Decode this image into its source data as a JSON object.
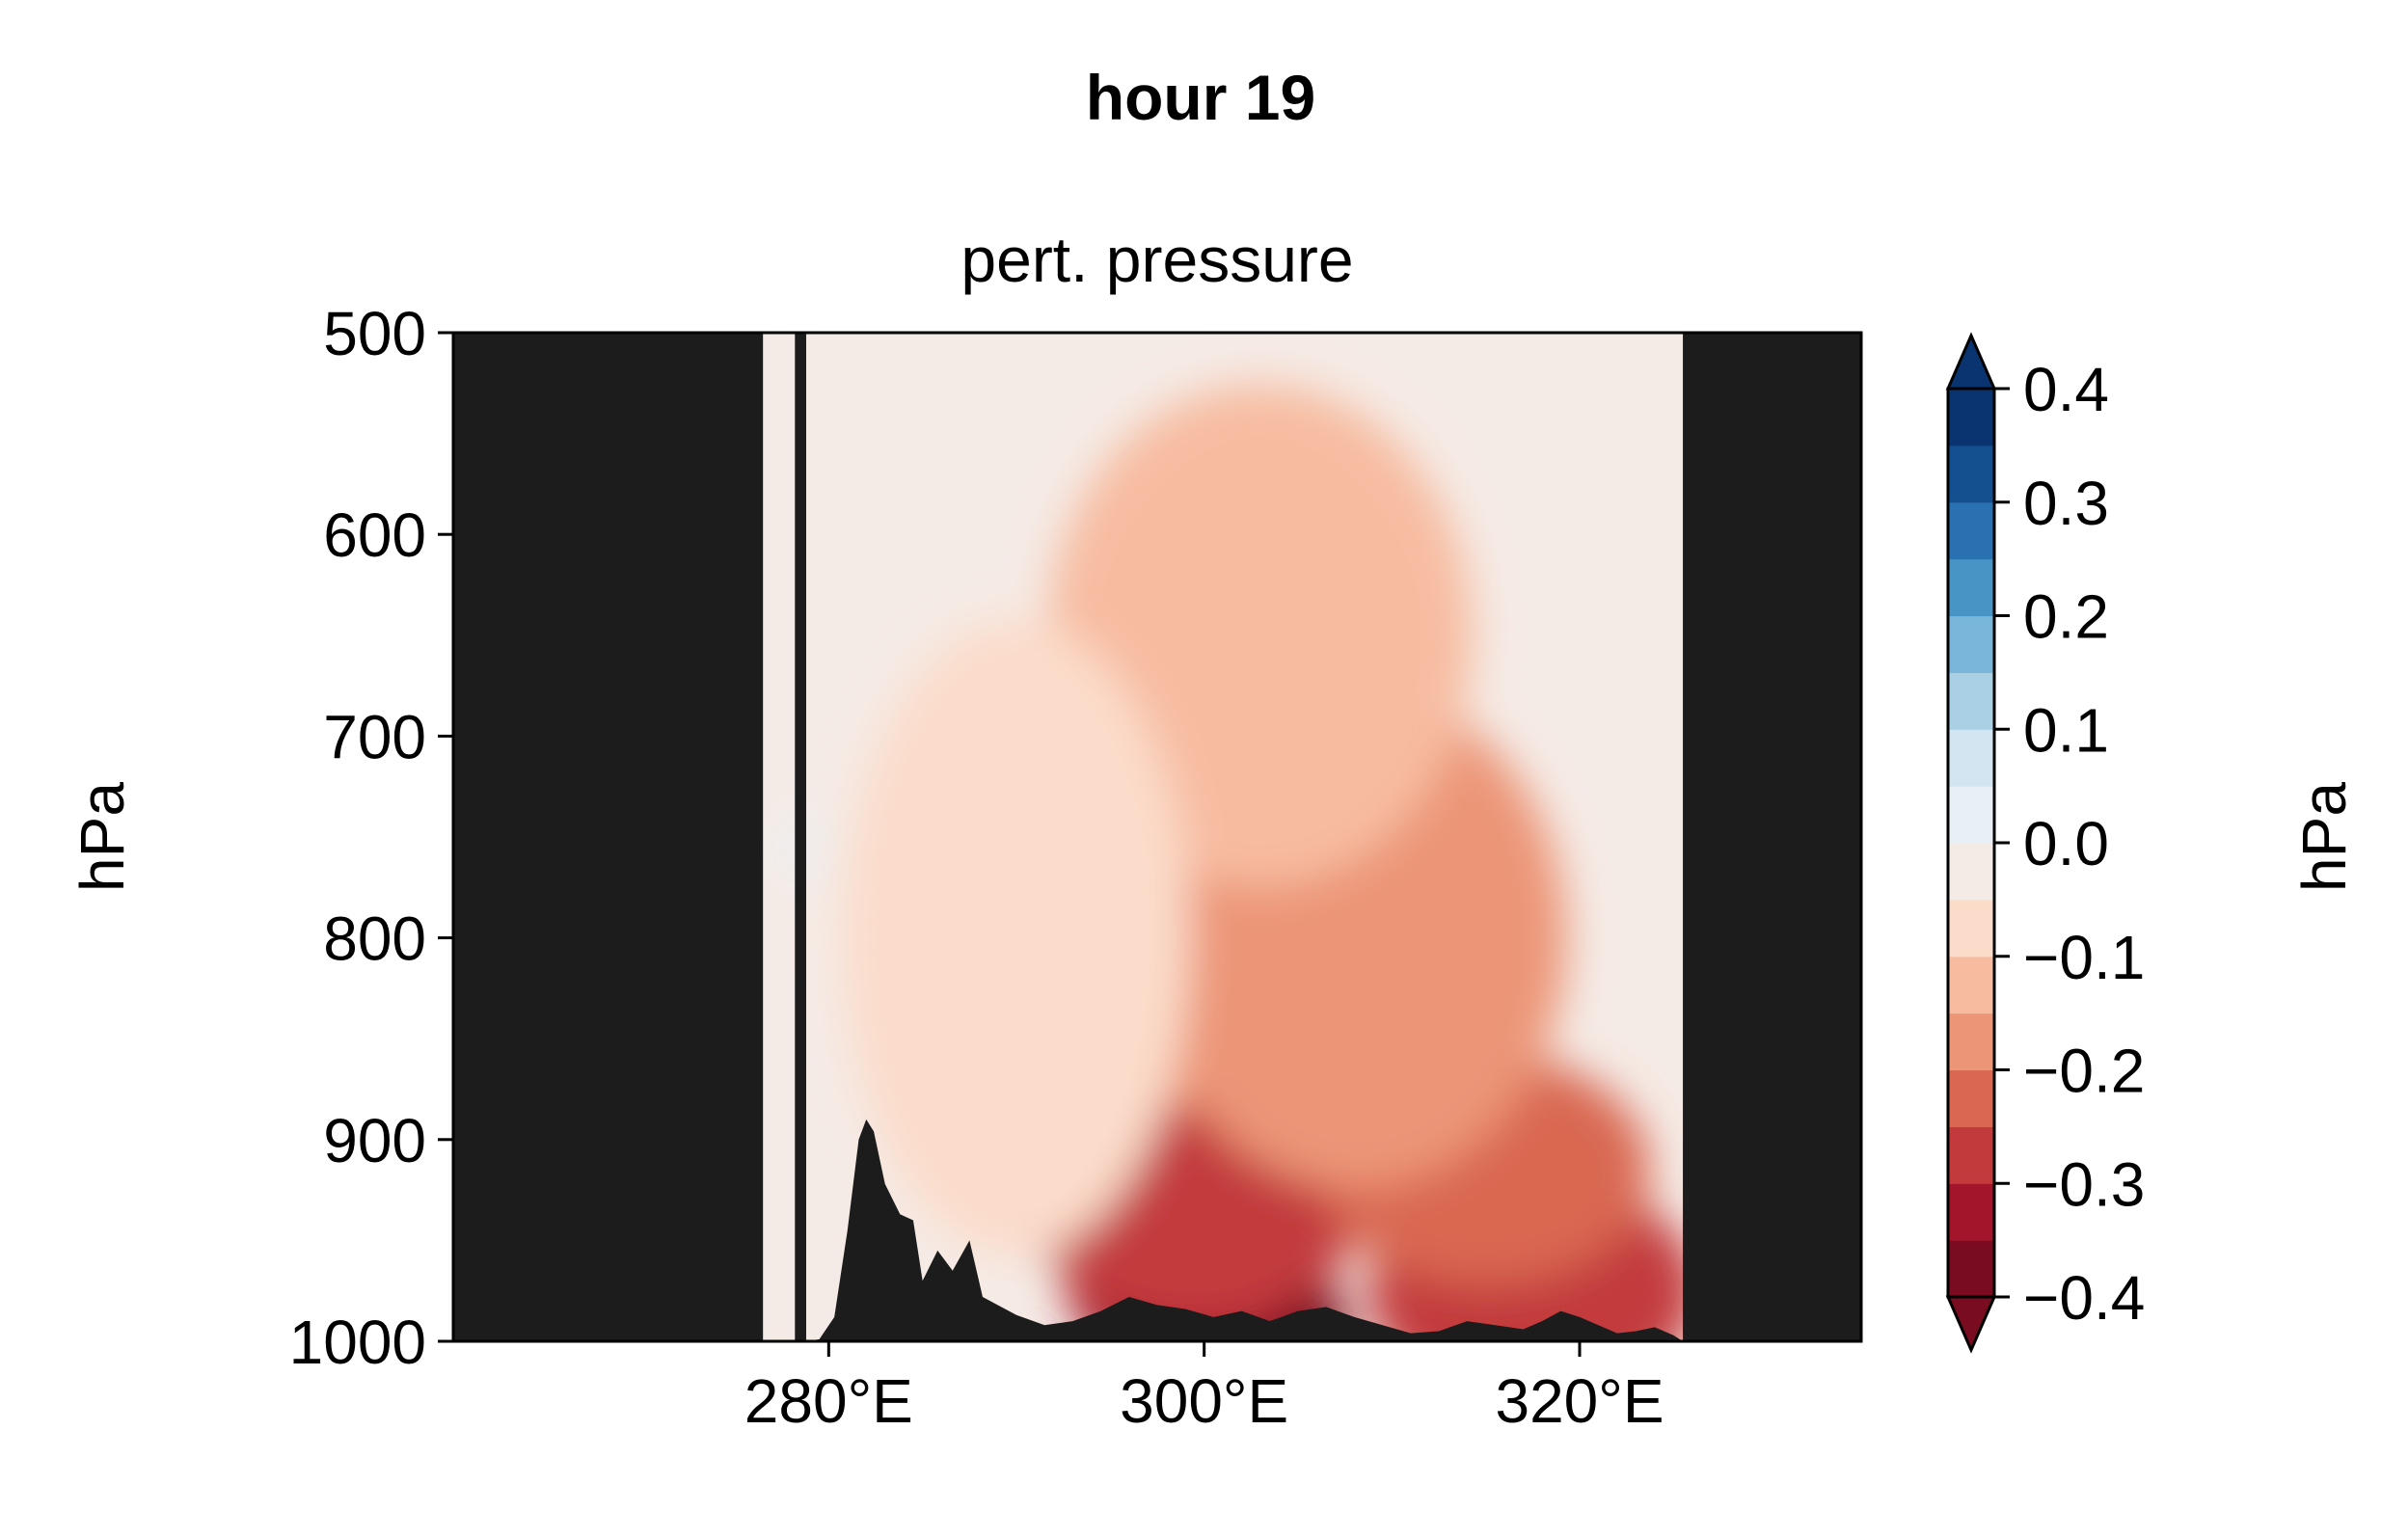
{
  "figure": {
    "suptitle": "hour 19",
    "panel_title": "pert. pressure"
  },
  "colors": {
    "background": "#ffffff",
    "masked_terrain": "#1c1c1c",
    "rdbu_levels": [
      "#7a0c22",
      "#a3152a",
      "#c33a3d",
      "#d96751",
      "#ec9577",
      "#f7bca0",
      "#fbdcca",
      "#f5ebe6",
      "#e8f0f5",
      "#d3e5f1",
      "#a9d0e5",
      "#79b6d9",
      "#4894c4",
      "#2a71b2",
      "#14508f",
      "#0a3470"
    ]
  },
  "chart_data": {
    "type": "heatmap",
    "subtype": "filled-contour vertical cross-section",
    "title": "pert. pressure",
    "xlabel": "",
    "ylabel": "hPa",
    "x_unit": "°E",
    "xlim": [
      260,
      335
    ],
    "ylim": [
      1000,
      500
    ],
    "y_inverted": true,
    "x_ticks": [
      280,
      300,
      320
    ],
    "x_tick_labels": [
      "280°E",
      "300°E",
      "320°E"
    ],
    "y_ticks": [
      500,
      600,
      700,
      800,
      900,
      1000
    ],
    "y_tick_labels": [
      "500",
      "600",
      "700",
      "800",
      "900",
      "1000"
    ],
    "grid": false,
    "masked_regions_x": [
      [
        260,
        276.5
      ],
      [
        278.2,
        278.8
      ],
      [
        325.5,
        335
      ]
    ],
    "terrain_profile": {
      "x": [
        278.8,
        279.5,
        280.3,
        281.0,
        281.6,
        282.0,
        282.4,
        283.0,
        283.8,
        284.5,
        285.0,
        285.8,
        286.6,
        287.5,
        288.2,
        289.0,
        290.0,
        291.5,
        293.0,
        294.5,
        296.0,
        297.5,
        299.0,
        300.5,
        302.0,
        303.5,
        305.0,
        306.5,
        308.0,
        309.5,
        311.0,
        312.5,
        314.0,
        315.5,
        317.0,
        318.0,
        319.0,
        320.0,
        321.0,
        322.0,
        323.0,
        324.0,
        325.0,
        325.5
      ],
      "p": [
        1000,
        999,
        988,
        945,
        900,
        890,
        896,
        922,
        937,
        940,
        970,
        955,
        965,
        950,
        978,
        982,
        987,
        992,
        990,
        985,
        978,
        982,
        984,
        988,
        985,
        990,
        985,
        983,
        988,
        992,
        996,
        995,
        990,
        992,
        994,
        990,
        985,
        988,
        992,
        996,
        995,
        993,
        997,
        1000
      ]
    },
    "colorbar": {
      "label": "hPa",
      "vmin": -0.4,
      "vmax": 0.4,
      "levels": [
        -0.4,
        -0.35,
        -0.3,
        -0.25,
        -0.2,
        -0.15,
        -0.1,
        -0.05,
        0.0,
        0.05,
        0.1,
        0.15,
        0.2,
        0.25,
        0.3,
        0.35,
        0.4
      ],
      "extend": "both",
      "ticks": [
        -0.4,
        -0.3,
        -0.2,
        -0.1,
        0.0,
        0.1,
        0.2,
        0.3,
        0.4
      ],
      "tick_labels": [
        "−0.4",
        "−0.3",
        "−0.2",
        "−0.1",
        "0.0",
        "0.1",
        "0.2",
        "0.3",
        "0.4"
      ]
    },
    "field_cores": [
      {
        "x": 302.0,
        "p": 990,
        "value": -0.37
      },
      {
        "x": 298.5,
        "p": 978,
        "value": -0.33
      },
      {
        "x": 317.5,
        "p": 975,
        "value": -0.3
      },
      {
        "x": 299.5,
        "p": 935,
        "value": -0.26
      },
      {
        "x": 315.0,
        "p": 915,
        "value": -0.24
      },
      {
        "x": 298.0,
        "p": 760,
        "value": -0.18
      },
      {
        "x": 308.0,
        "p": 800,
        "value": -0.16
      },
      {
        "x": 303.0,
        "p": 650,
        "value": -0.12
      },
      {
        "x": 290.0,
        "p": 800,
        "value": -0.07
      },
      {
        "x": 278.4,
        "p": 755,
        "value": 0.03
      }
    ]
  }
}
